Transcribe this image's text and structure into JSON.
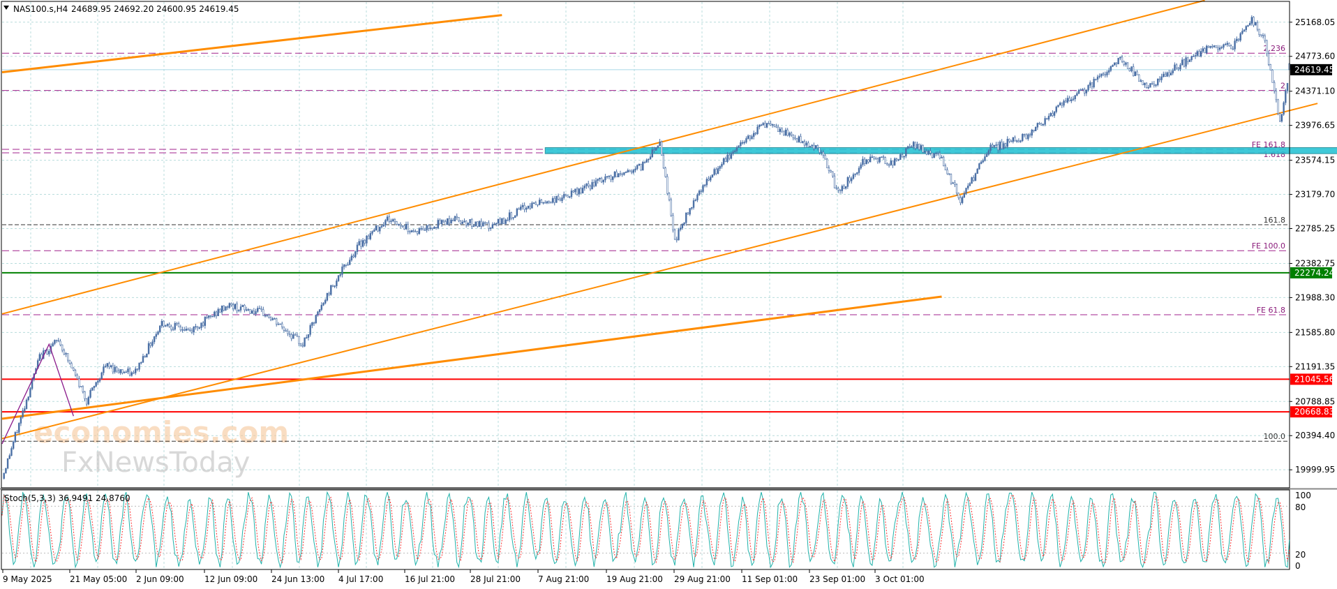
{
  "header": {
    "symbol_label": "NAS100.s,H4",
    "ohlc_text": "24689.95 24692.20 24600.95 24619.45"
  },
  "stoch": {
    "label": "Stoch(5,3,3) 36.9491 24.8760",
    "levels": [
      "100",
      "80",
      "20",
      "0"
    ]
  },
  "watermark": {
    "line1": "economies.com",
    "line2": "FxNewsToday"
  },
  "colors": {
    "candle": "#4a6fa5",
    "channel": "#ff8c00",
    "fib_dashed": "#a0208c",
    "fib_black": "#333333",
    "zone": "#2bc4d4",
    "support_red": "#ff0000",
    "support_green": "#008000",
    "stoch_main": "#20b2aa",
    "stoch_signal": "#ff3030"
  },
  "chart_data": {
    "type": "candlestick",
    "symbol": "NAS100.s",
    "timeframe": "H4",
    "ylim": [
      19800,
      25400
    ],
    "y_ticks": [
      25168.05,
      24773.6,
      24371.1,
      23976.65,
      23574.15,
      23179.7,
      22785.25,
      22382.75,
      21988.3,
      21585.8,
      21191.35,
      20788.85,
      20394.4,
      19999.95
    ],
    "y_tick_labels": [
      "25168.05",
      "24773.60",
      "24371.10",
      "23976.65",
      "23574.15",
      "23179.70",
      "22785.25",
      "22382.75",
      "21988.30",
      "21585.80",
      "21191.35",
      "20788.85",
      "20394.40",
      "19999.95"
    ],
    "x_tick_labels": [
      "9 May 2025",
      "21 May 05:00",
      "2 Jun 09:00",
      "12 Jun 09:00",
      "24 Jun 13:00",
      "4 Jul 17:00",
      "16 Jul 21:00",
      "28 Jul 21:00",
      "7 Aug 21:00",
      "19 Aug 21:00",
      "29 Aug 21:00",
      "11 Sep 01:00",
      "23 Sep 01:00",
      "3 Oct 01:00"
    ],
    "price_path": [
      [
        0,
        19900
      ],
      [
        10,
        20600
      ],
      [
        20,
        21300
      ],
      [
        30,
        21500
      ],
      [
        45,
        20800
      ],
      [
        55,
        21200
      ],
      [
        70,
        21100
      ],
      [
        85,
        21700
      ],
      [
        100,
        21600
      ],
      [
        120,
        21900
      ],
      [
        140,
        21800
      ],
      [
        160,
        21450
      ],
      [
        175,
        22100
      ],
      [
        190,
        22600
      ],
      [
        205,
        22900
      ],
      [
        220,
        22750
      ],
      [
        240,
        22900
      ],
      [
        260,
        22800
      ],
      [
        280,
        23050
      ],
      [
        300,
        23150
      ],
      [
        320,
        23350
      ],
      [
        340,
        23500
      ],
      [
        350,
        23800
      ],
      [
        358,
        22650
      ],
      [
        370,
        23200
      ],
      [
        390,
        23700
      ],
      [
        405,
        24000
      ],
      [
        420,
        23850
      ],
      [
        435,
        23700
      ],
      [
        445,
        23200
      ],
      [
        460,
        23600
      ],
      [
        475,
        23550
      ],
      [
        485,
        23750
      ],
      [
        500,
        23600
      ],
      [
        510,
        23100
      ],
      [
        525,
        23700
      ],
      [
        545,
        23850
      ],
      [
        560,
        24150
      ],
      [
        580,
        24450
      ],
      [
        595,
        24750
      ],
      [
        610,
        24400
      ],
      [
        625,
        24650
      ],
      [
        640,
        24850
      ],
      [
        655,
        24900
      ],
      [
        665,
        25200
      ],
      [
        672,
        24950
      ],
      [
        680,
        24000
      ],
      [
        685,
        24620
      ]
    ],
    "last_bar": {
      "open": 24689.95,
      "high": 24692.2,
      "low": 24600.95,
      "close": 24619.45
    },
    "horizontal_levels": [
      {
        "price": 24619.45,
        "label": "24619.45",
        "kind": "current"
      },
      {
        "price": 22274.24,
        "label": "22274.24",
        "kind": "support_green"
      },
      {
        "price": 21045.56,
        "label": "21045.56",
        "kind": "support_red"
      },
      {
        "price": 20668.83,
        "label": "20668.83",
        "kind": "support_red"
      }
    ],
    "fib_levels": [
      {
        "price": 24810,
        "label": "2.236",
        "style": "dashed"
      },
      {
        "price": 24380,
        "label": "2",
        "style": "dashed"
      },
      {
        "price": 23700,
        "label": "FE 161.8",
        "style": "dashed"
      },
      {
        "price": 23660,
        "label": "1.618",
        "style": "dashed"
      },
      {
        "price": 22830,
        "label": "161.8",
        "style": "black"
      },
      {
        "price": 22530,
        "label": "FE 100.0",
        "style": "dashed"
      },
      {
        "price": 21790,
        "label": "FE 61.8",
        "style": "dashed"
      },
      {
        "price": 20330,
        "label": "100.0",
        "style": "black"
      }
    ],
    "zone": {
      "top": 23720,
      "bottom": 23650,
      "x_start": 289,
      "x_end": 850
    },
    "trendlines": [
      {
        "name": "channel_upper",
        "points": [
          [
            0,
            21800
          ],
          [
            640,
            25420
          ]
        ]
      },
      {
        "name": "channel_lower",
        "points": [
          [
            0,
            20360
          ],
          [
            700,
            24230
          ]
        ]
      },
      {
        "name": "upper_line",
        "points": [
          [
            0,
            24590
          ],
          [
            266,
            25250
          ]
        ]
      },
      {
        "name": "lower_line",
        "points": [
          [
            0,
            20590
          ],
          [
            500,
            22000
          ]
        ]
      }
    ],
    "stochastic": {
      "k": 36.9491,
      "d": 24.876,
      "k_period": 5,
      "d_period": 3,
      "slowing": 3
    }
  }
}
